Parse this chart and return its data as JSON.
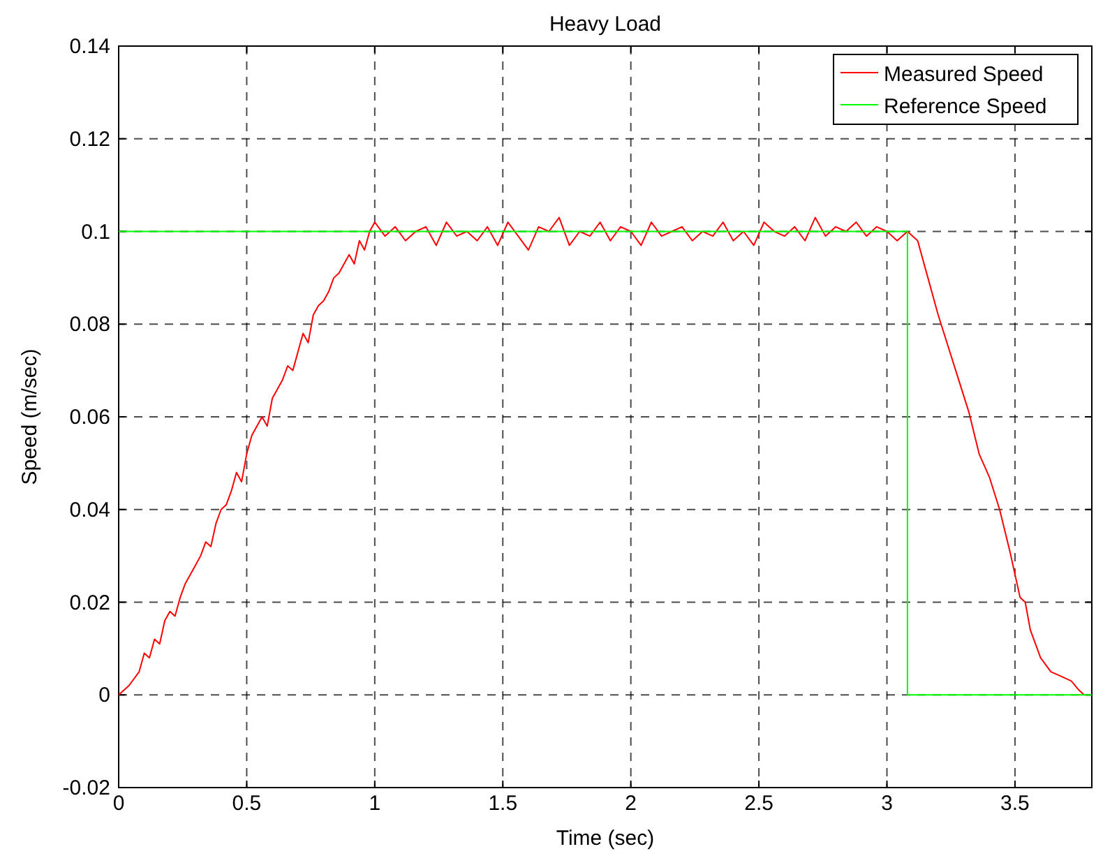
{
  "chart_data": {
    "type": "line",
    "title": "Heavy Load",
    "xlabel": "Time (sec)",
    "ylabel": "Speed (m/sec)",
    "xlim": [
      0,
      3.8
    ],
    "xticks": [
      0,
      0.5,
      1,
      1.5,
      2,
      2.5,
      3,
      3.5
    ],
    "ylim": [
      -0.02,
      0.14
    ],
    "yticks": [
      -0.02,
      0,
      0.02,
      0.04,
      0.06,
      0.08,
      0.1,
      0.12,
      0.14
    ],
    "grid": true,
    "legend": "top right",
    "line_style": "solid",
    "series": [
      {
        "name": "Measured Speed",
        "color": "#ff0000",
        "x": [
          0,
          0.04,
          0.08,
          0.1,
          0.12,
          0.14,
          0.16,
          0.18,
          0.2,
          0.22,
          0.24,
          0.26,
          0.28,
          0.3,
          0.32,
          0.34,
          0.36,
          0.38,
          0.4,
          0.42,
          0.44,
          0.46,
          0.48,
          0.5,
          0.52,
          0.54,
          0.56,
          0.58,
          0.6,
          0.62,
          0.64,
          0.66,
          0.68,
          0.7,
          0.72,
          0.74,
          0.76,
          0.78,
          0.8,
          0.82,
          0.84,
          0.86,
          0.88,
          0.9,
          0.92,
          0.94,
          0.96,
          0.98,
          1.0,
          1.04,
          1.08,
          1.12,
          1.16,
          1.2,
          1.24,
          1.28,
          1.32,
          1.36,
          1.4,
          1.44,
          1.48,
          1.52,
          1.56,
          1.6,
          1.64,
          1.68,
          1.72,
          1.76,
          1.8,
          1.84,
          1.88,
          1.92,
          1.96,
          2.0,
          2.04,
          2.08,
          2.12,
          2.16,
          2.2,
          2.24,
          2.28,
          2.32,
          2.36,
          2.4,
          2.44,
          2.48,
          2.52,
          2.56,
          2.6,
          2.64,
          2.68,
          2.72,
          2.76,
          2.8,
          2.84,
          2.88,
          2.92,
          2.96,
          3.0,
          3.04,
          3.08,
          3.12,
          3.16,
          3.2,
          3.24,
          3.28,
          3.32,
          3.36,
          3.4,
          3.44,
          3.48,
          3.52,
          3.54,
          3.56,
          3.6,
          3.64,
          3.68,
          3.72,
          3.75,
          3.77
        ],
        "values": [
          0,
          0.002,
          0.005,
          0.009,
          0.008,
          0.012,
          0.011,
          0.016,
          0.018,
          0.017,
          0.021,
          0.024,
          0.026,
          0.028,
          0.03,
          0.033,
          0.032,
          0.037,
          0.04,
          0.041,
          0.044,
          0.048,
          0.046,
          0.052,
          0.056,
          0.058,
          0.06,
          0.058,
          0.064,
          0.066,
          0.068,
          0.071,
          0.07,
          0.074,
          0.078,
          0.076,
          0.082,
          0.084,
          0.085,
          0.087,
          0.09,
          0.091,
          0.093,
          0.095,
          0.093,
          0.098,
          0.096,
          0.1,
          0.102,
          0.099,
          0.101,
          0.098,
          0.1,
          0.101,
          0.097,
          0.102,
          0.099,
          0.1,
          0.098,
          0.101,
          0.097,
          0.102,
          0.099,
          0.096,
          0.101,
          0.1,
          0.103,
          0.097,
          0.1,
          0.099,
          0.102,
          0.098,
          0.101,
          0.1,
          0.097,
          0.102,
          0.099,
          0.1,
          0.101,
          0.098,
          0.1,
          0.099,
          0.102,
          0.098,
          0.1,
          0.097,
          0.102,
          0.1,
          0.099,
          0.101,
          0.098,
          0.103,
          0.099,
          0.101,
          0.1,
          0.102,
          0.099,
          0.101,
          0.1,
          0.098,
          0.1,
          0.098,
          0.09,
          0.082,
          0.075,
          0.068,
          0.061,
          0.052,
          0.047,
          0.04,
          0.031,
          0.021,
          0.02,
          0.014,
          0.008,
          0.005,
          0.004,
          0.003,
          0.001,
          0
        ]
      },
      {
        "name": "Reference Speed",
        "color": "#00ff00",
        "x": [
          0,
          3.08,
          3.08,
          3.8
        ],
        "values": [
          0.1,
          0.1,
          0,
          0
        ]
      }
    ]
  }
}
